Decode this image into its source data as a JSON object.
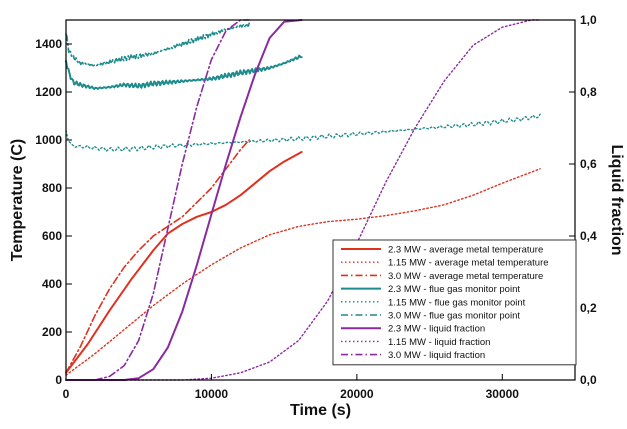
{
  "chart_data": {
    "type": "line",
    "xlabel": "Time (s)",
    "ylabel": "Temperature (C)",
    "y2label": "Liquid fraction",
    "xlim": [
      0,
      35000
    ],
    "ylim": [
      0,
      1500
    ],
    "y2lim": [
      0,
      1
    ],
    "x_ticks": [
      {
        "value": 0,
        "label": "0"
      },
      {
        "value": 10000,
        "label": "10000"
      },
      {
        "value": 20000,
        "label": "20000"
      },
      {
        "value": 30000,
        "label": "30000"
      }
    ],
    "y_ticks": [
      {
        "value": 0,
        "label": "0"
      },
      {
        "value": 200,
        "label": "200"
      },
      {
        "value": 400,
        "label": "400"
      },
      {
        "value": 600,
        "label": "600"
      },
      {
        "value": 800,
        "label": "800"
      },
      {
        "value": 1000,
        "label": "1000"
      },
      {
        "value": 1200,
        "label": "1200"
      },
      {
        "value": 1400,
        "label": "1400"
      }
    ],
    "y2_ticks": [
      {
        "value": 0,
        "label": "0,0"
      },
      {
        "value": 0.2,
        "label": "0,2"
      },
      {
        "value": 0.4,
        "label": "0,4"
      },
      {
        "value": 0.6,
        "label": "0,6"
      },
      {
        "value": 0.8,
        "label": "0,8"
      },
      {
        "value": 1.0,
        "label": "1,0"
      }
    ],
    "grid": false,
    "legend_position": "bottom-right",
    "series": [
      {
        "name": "2.3 MW - average metal temperature",
        "axis": "left",
        "color": "#e0301e",
        "dash": "solid",
        "width": 2,
        "x": [
          0,
          1500,
          3000,
          4500,
          6000,
          7000,
          8000,
          9000,
          10000,
          11000,
          12000,
          13000,
          14000,
          15000,
          16200
        ],
        "y": [
          30,
          150,
          290,
          420,
          540,
          610,
          650,
          680,
          700,
          730,
          770,
          820,
          870,
          910,
          950
        ]
      },
      {
        "name": "1.15 MW - average metal temperature",
        "axis": "left",
        "color": "#e0301e",
        "dash": "dot",
        "width": 1.4,
        "x": [
          0,
          2000,
          4000,
          6000,
          8000,
          10000,
          12000,
          14000,
          16000,
          18000,
          20000,
          22000,
          24000,
          26000,
          28000,
          30000,
          32600
        ],
        "y": [
          20,
          110,
          210,
          310,
          400,
          480,
          550,
          605,
          640,
          660,
          670,
          685,
          705,
          730,
          770,
          820,
          880
        ]
      },
      {
        "name": "3.0 MW - average metal temperature",
        "axis": "left",
        "color": "#e0301e",
        "dash": "dashdot",
        "width": 1.6,
        "x": [
          0,
          1000,
          2000,
          3000,
          4000,
          5000,
          6000,
          7000,
          8000,
          9000,
          10000,
          11000,
          12000,
          12600
        ],
        "y": [
          30,
          140,
          270,
          380,
          470,
          540,
          600,
          640,
          680,
          740,
          800,
          880,
          960,
          1000
        ]
      },
      {
        "name": "2.3 MW - flue gas monitor point",
        "axis": "left",
        "color": "#1e8c8c",
        "dash": "solid",
        "width": 2,
        "noisy": true,
        "x": [
          0,
          200,
          500,
          1000,
          2000,
          3000,
          4000,
          5000,
          6000,
          8000,
          10000,
          12000,
          14000,
          15000,
          16200
        ],
        "y": [
          1330,
          1280,
          1240,
          1230,
          1215,
          1220,
          1230,
          1225,
          1235,
          1245,
          1255,
          1280,
          1300,
          1320,
          1350
        ]
      },
      {
        "name": "1.15 MW - flue gas monitor point",
        "axis": "left",
        "color": "#1e8c8c",
        "dash": "dot",
        "width": 1.4,
        "noisy": true,
        "x": [
          0,
          200,
          500,
          1500,
          3000,
          5000,
          7000,
          10000,
          13000,
          16000,
          19000,
          22000,
          25000,
          28000,
          31000,
          32600
        ],
        "y": [
          1040,
          990,
          975,
          970,
          960,
          965,
          975,
          985,
          995,
          1005,
          1020,
          1035,
          1050,
          1065,
          1085,
          1100
        ]
      },
      {
        "name": "3.0 MW - flue gas monitor point",
        "axis": "left",
        "color": "#1e8c8c",
        "dash": "dashdot",
        "width": 1.6,
        "noisy": true,
        "x": [
          0,
          200,
          600,
          1000,
          2000,
          3000,
          4000,
          5000,
          6000,
          7000,
          8000,
          9000,
          10000,
          11000,
          12000,
          12600
        ],
        "y": [
          1450,
          1370,
          1340,
          1320,
          1310,
          1325,
          1340,
          1350,
          1360,
          1380,
          1400,
          1420,
          1440,
          1460,
          1475,
          1480
        ]
      },
      {
        "name": "2.3 MW - liquid fraction",
        "axis": "right",
        "color": "#8a2aa0",
        "dash": "solid",
        "width": 2,
        "x": [
          0,
          4000,
          5000,
          6000,
          7000,
          8000,
          9000,
          10000,
          11000,
          12000,
          13000,
          14000,
          15000,
          16200
        ],
        "y": [
          0,
          0,
          0.005,
          0.03,
          0.09,
          0.19,
          0.32,
          0.46,
          0.6,
          0.73,
          0.85,
          0.95,
          0.995,
          1.0
        ]
      },
      {
        "name": "1.15 MW - liquid fraction",
        "axis": "right",
        "color": "#8a2aa0",
        "dash": "dot",
        "width": 1.4,
        "x": [
          0,
          8000,
          10000,
          12000,
          14000,
          16000,
          18000,
          20000,
          22000,
          24000,
          26000,
          28000,
          30000,
          32000,
          32600
        ],
        "y": [
          0,
          0,
          0.005,
          0.02,
          0.05,
          0.11,
          0.22,
          0.38,
          0.55,
          0.7,
          0.83,
          0.93,
          0.98,
          1.0,
          1.0
        ]
      },
      {
        "name": "3.0 MW - liquid fraction",
        "axis": "right",
        "color": "#8a2aa0",
        "dash": "dashdot",
        "width": 1.6,
        "x": [
          0,
          2000,
          3000,
          4000,
          5000,
          6000,
          7000,
          8000,
          9000,
          10000,
          11000,
          12000,
          12600
        ],
        "y": [
          0,
          0,
          0.01,
          0.04,
          0.11,
          0.24,
          0.42,
          0.6,
          0.76,
          0.89,
          0.97,
          1.0,
          1.0
        ]
      }
    ]
  }
}
